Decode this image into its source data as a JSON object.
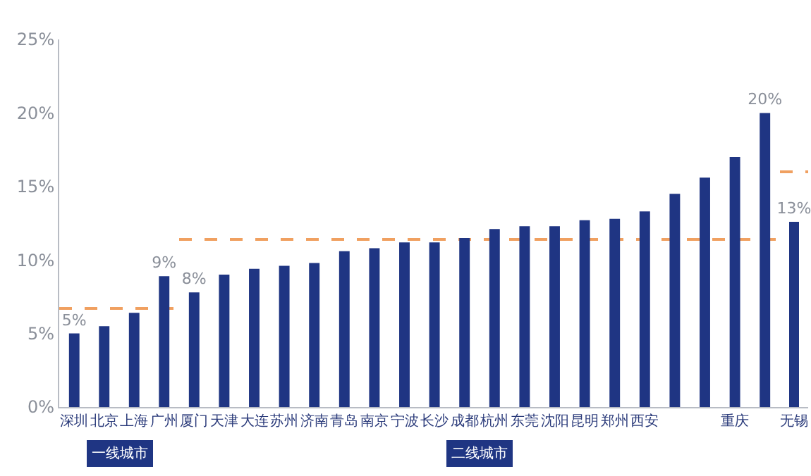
{
  "chart_data": [
    {
      "type": "bar",
      "xlabel": "一线城市",
      "categories": [
        "深圳",
        "北京",
        "上海",
        "广州"
      ],
      "values": [
        5.0,
        5.5,
        6.4,
        8.9
      ],
      "value_labels": [
        "5%",
        null,
        null,
        "9%"
      ],
      "color": "#1f3583",
      "ylim": [
        0,
        25
      ],
      "yticks": [
        {
          "value": 0,
          "label": "0%"
        },
        {
          "value": 5,
          "label": "5%"
        },
        {
          "value": 10,
          "label": "10%"
        },
        {
          "value": 15,
          "label": "15%"
        },
        {
          "value": 20,
          "label": "20%"
        },
        {
          "value": 25,
          "label": "25%"
        }
      ],
      "ref_lines": [
        {
          "axis": "y",
          "value": 6.7,
          "color": "#f0a060",
          "line_style": "dashed"
        }
      ],
      "grid": false
    },
    {
      "type": "bar",
      "xlabel": "二线城市",
      "categories": [
        "厦门",
        "天津",
        "大连",
        "苏州",
        "济南",
        "青岛",
        "南京",
        "宁波",
        "长沙",
        "成都",
        "杭州",
        "东莞",
        "沈阳",
        "昆明",
        "郑州",
        "西安",
        null,
        null,
        "重庆",
        null
      ],
      "values": [
        7.8,
        9.0,
        9.4,
        9.6,
        9.8,
        10.6,
        10.8,
        11.2,
        11.2,
        11.5,
        12.1,
        12.3,
        12.3,
        12.7,
        12.8,
        13.3,
        14.5,
        15.6,
        17.0,
        20.0
      ],
      "value_labels": [
        "8%",
        null,
        null,
        null,
        null,
        null,
        null,
        null,
        null,
        null,
        null,
        null,
        null,
        null,
        null,
        null,
        null,
        null,
        null,
        "20%"
      ],
      "color": "#1f3583",
      "ylim": [
        0,
        25
      ],
      "tick_labels": "x",
      "ref_lines": [
        {
          "axis": "y",
          "value": 11.4,
          "color": "#f0a060",
          "line_style": "dashed"
        }
      ],
      "grid": false
    },
    {
      "type": "bar",
      "categories": [
        "无锡"
      ],
      "values": [
        12.6
      ],
      "value_labels": [
        "13%"
      ],
      "color": "#1f3583",
      "ylim": [
        0,
        25
      ],
      "tick_labels": "x",
      "ref_lines": [
        {
          "axis": "y",
          "value": 16.0,
          "color": "#f0a060",
          "line_style": "dashed"
        }
      ],
      "grid": false
    }
  ]
}
